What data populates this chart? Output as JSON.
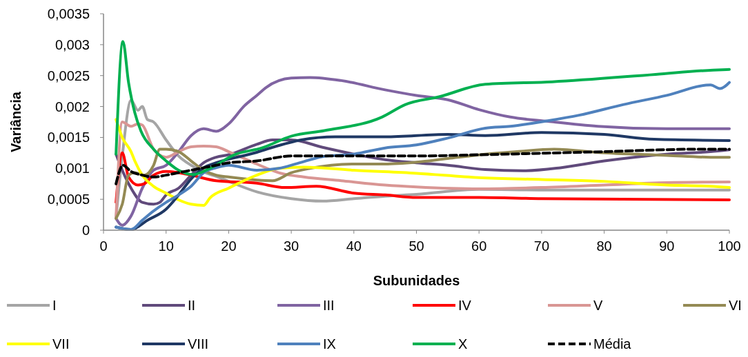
{
  "chart_data": {
    "type": "line",
    "xlabel": "Subunidades",
    "ylabel": "Variância",
    "xlim": [
      0,
      100
    ],
    "xticks": [
      0,
      10,
      20,
      30,
      40,
      50,
      60,
      70,
      80,
      90,
      100
    ],
    "ylim": [
      0,
      0.0035
    ],
    "yticks": [
      {
        "value": 0,
        "label": "0"
      },
      {
        "value": 0.0005,
        "label": "0,0005"
      },
      {
        "value": 0.001,
        "label": "0,001"
      },
      {
        "value": 0.0015,
        "label": "0,0015"
      },
      {
        "value": 0.002,
        "label": "0,002"
      },
      {
        "value": 0.0025,
        "label": "0,0025"
      },
      {
        "value": 0.003,
        "label": "0,003"
      },
      {
        "value": 0.0035,
        "label": "0,0035"
      }
    ],
    "grid": false,
    "legend": "bottom",
    "marker": "none",
    "series": [
      {
        "name": "I",
        "color": "#a5a5a5",
        "x": [
          2,
          3,
          4.4,
          5.5,
          6.2,
          7,
          8,
          10,
          12,
          14,
          16,
          18,
          20,
          24.5,
          30,
          35,
          40,
          45,
          50,
          60,
          70,
          80,
          100
        ],
        "values": [
          0.0002,
          0.0012,
          0.0021,
          0.00194,
          0.002,
          0.00179,
          0.00175,
          0.00146,
          0.0012,
          0.00105,
          0.00094,
          0.00087,
          0.00079,
          0.00062,
          0.00051,
          0.00047,
          0.00051,
          0.00055,
          0.00058,
          0.00066,
          0.00065,
          0.00065,
          0.00065
        ]
      },
      {
        "name": "II",
        "color": "#604a7b",
        "x": [
          2,
          3,
          4.4,
          6.2,
          8,
          9,
          10,
          12,
          14,
          16,
          18,
          20,
          24.5,
          27,
          30,
          35,
          40,
          45,
          50,
          55,
          61,
          67,
          73,
          80,
          90,
          97,
          100
        ],
        "values": [
          0.00123,
          0.00097,
          0.00068,
          0.00045,
          0.00042,
          0.00045,
          0.00057,
          0.00068,
          0.00089,
          0.00109,
          0.00118,
          0.00122,
          0.00139,
          0.00146,
          0.00146,
          0.00134,
          0.00123,
          0.00114,
          0.00109,
          0.00105,
          0.00098,
          0.00096,
          0.00101,
          0.00112,
          0.00123,
          0.00127,
          0.0013
        ]
      },
      {
        "name": "III",
        "color": "#8064a2",
        "x": [
          2,
          3,
          4.4,
          6.2,
          8,
          10,
          12,
          14,
          16,
          18,
          20,
          22.5,
          24.5,
          26,
          30,
          33,
          38,
          45,
          50,
          55,
          60,
          65,
          71,
          79,
          90,
          100
        ],
        "values": [
          0.00019,
          8e-05,
          0.00023,
          0.00068,
          0.00097,
          0.00105,
          0.00127,
          0.00153,
          0.00164,
          0.0016,
          0.00172,
          0.00201,
          0.00218,
          0.00231,
          0.00246,
          0.00247,
          0.00242,
          0.00227,
          0.00218,
          0.00211,
          0.00195,
          0.00183,
          0.00176,
          0.00168,
          0.00164,
          0.00164
        ]
      },
      {
        "name": "IV",
        "color": "#ff0000",
        "x": [
          2,
          3,
          4,
          5.5,
          6.5,
          8,
          10,
          12,
          14,
          18,
          24.5,
          29,
          34,
          40,
          45,
          50,
          60,
          70,
          100
        ],
        "values": [
          0.00045,
          0.00125,
          0.00086,
          0.00073,
          0.00075,
          0.00089,
          0.00095,
          0.00093,
          0.00089,
          0.0008,
          0.00076,
          0.00069,
          0.00071,
          0.0006,
          0.00057,
          0.00053,
          0.00053,
          0.00051,
          0.00049
        ]
      },
      {
        "name": "V",
        "color": "#d99694",
        "x": [
          2,
          3,
          4.4,
          5.5,
          6.2,
          8,
          10,
          12,
          14,
          16,
          18,
          20,
          24.5,
          28,
          32,
          38,
          45,
          50,
          60,
          70,
          80,
          90,
          100
        ],
        "values": [
          0.0002,
          0.00175,
          0.00168,
          0.00172,
          0.0017,
          0.00131,
          0.00118,
          0.00127,
          0.00135,
          0.00136,
          0.00135,
          0.00127,
          0.00107,
          0.00093,
          0.00086,
          0.0008,
          0.00073,
          0.0007,
          0.00067,
          0.00069,
          0.00073,
          0.00077,
          0.00078
        ]
      },
      {
        "name": "VI",
        "color": "#948a54",
        "x": [
          2,
          3,
          4,
          5,
          6.5,
          8,
          9,
          10,
          12,
          14,
          16,
          18,
          20,
          24.5,
          27,
          30,
          33,
          40,
          45,
          50,
          55,
          61,
          66,
          72,
          80,
          90,
          97,
          100
        ],
        "values": [
          0.00019,
          0.00042,
          0.00089,
          0.00093,
          0.00089,
          0.00105,
          0.00131,
          0.00131,
          0.00127,
          0.00112,
          0.00097,
          0.00089,
          0.00086,
          0.00081,
          0.0008,
          0.00093,
          0.001,
          0.00107,
          0.00107,
          0.0011,
          0.00116,
          0.00123,
          0.00127,
          0.00131,
          0.00125,
          0.00121,
          0.00118,
          0.00118
        ]
      },
      {
        "name": "VII",
        "color": "#ffff00",
        "x": [
          2,
          3,
          4.4,
          5,
          6.2,
          8,
          10,
          12,
          14,
          16,
          17,
          20,
          24.5,
          28,
          32,
          40,
          50,
          60,
          70,
          80,
          90,
          97,
          100
        ],
        "values": [
          0.00179,
          0.0015,
          0.00127,
          0.00112,
          0.00089,
          0.00071,
          0.0006,
          0.00049,
          0.00042,
          0.0004,
          0.00052,
          0.00068,
          0.00089,
          0.001,
          0.00102,
          0.00097,
          0.00092,
          0.00085,
          0.00082,
          0.00079,
          0.00073,
          0.00071,
          0.00069
        ]
      },
      {
        "name": "VIII",
        "color": "#1f3864",
        "x": [
          2,
          4.4,
          7,
          10,
          12,
          14,
          16,
          18,
          24.5,
          27,
          31.6,
          37,
          45,
          55,
          61,
          70,
          80,
          88,
          100
        ],
        "values": [
          5e-05,
          1e-05,
          0.00016,
          0.00034,
          0.00057,
          0.00083,
          0.00101,
          0.00109,
          0.00126,
          0.00134,
          0.00146,
          0.00151,
          0.00151,
          0.00155,
          0.00153,
          0.00158,
          0.00155,
          0.00147,
          0.00145
        ]
      },
      {
        "name": "IX",
        "color": "#4f81bd",
        "x": [
          2,
          4.4,
          6.2,
          8,
          10,
          12,
          14,
          16,
          18,
          20,
          24.5,
          28,
          31,
          35,
          40,
          45,
          50,
          55,
          61,
          65,
          71,
          76,
          83,
          90,
          97,
          98.5,
          100
        ],
        "values": [
          5e-05,
          1e-05,
          0.00016,
          0.00031,
          0.00045,
          0.00057,
          0.00071,
          0.00093,
          0.00101,
          0.00105,
          0.00097,
          0.001,
          0.00108,
          0.00119,
          0.00123,
          0.00133,
          0.00138,
          0.00149,
          0.00165,
          0.00168,
          0.00177,
          0.00186,
          0.00203,
          0.00218,
          0.00235,
          0.00229,
          0.00239
        ]
      },
      {
        "name": "X",
        "color": "#00b050",
        "x": [
          2,
          3.1,
          4,
          5,
          6,
          8,
          10,
          12,
          14.3,
          17.2,
          20.9,
          25.3,
          30,
          35.3,
          44.5,
          48.2,
          53.7,
          61,
          71.7,
          88.2,
          97.4,
          100
        ],
        "values": [
          0.00123,
          0.00305,
          0.00239,
          0.0019,
          0.0016,
          0.00131,
          0.00112,
          0.00097,
          0.0009,
          0.00101,
          0.00122,
          0.00133,
          0.00152,
          0.00161,
          0.00183,
          0.00203,
          0.00216,
          0.00236,
          0.0024,
          0.00252,
          0.00259,
          0.0026
        ]
      },
      {
        "name": "Média",
        "color": "#000000",
        "line_style": "dashed",
        "x": [
          2,
          3.1,
          4.4,
          6.2,
          8,
          10,
          12,
          14,
          16,
          18,
          20,
          24.5,
          30,
          40,
          50,
          60,
          80,
          95,
          100
        ],
        "values": [
          0.00075,
          0.00105,
          0.00095,
          0.00089,
          0.00086,
          0.00089,
          0.00093,
          0.00097,
          0.00101,
          0.00105,
          0.00109,
          0.00112,
          0.0012,
          0.0012,
          0.0012,
          0.00122,
          0.00127,
          0.00131,
          0.00131
        ]
      }
    ]
  }
}
